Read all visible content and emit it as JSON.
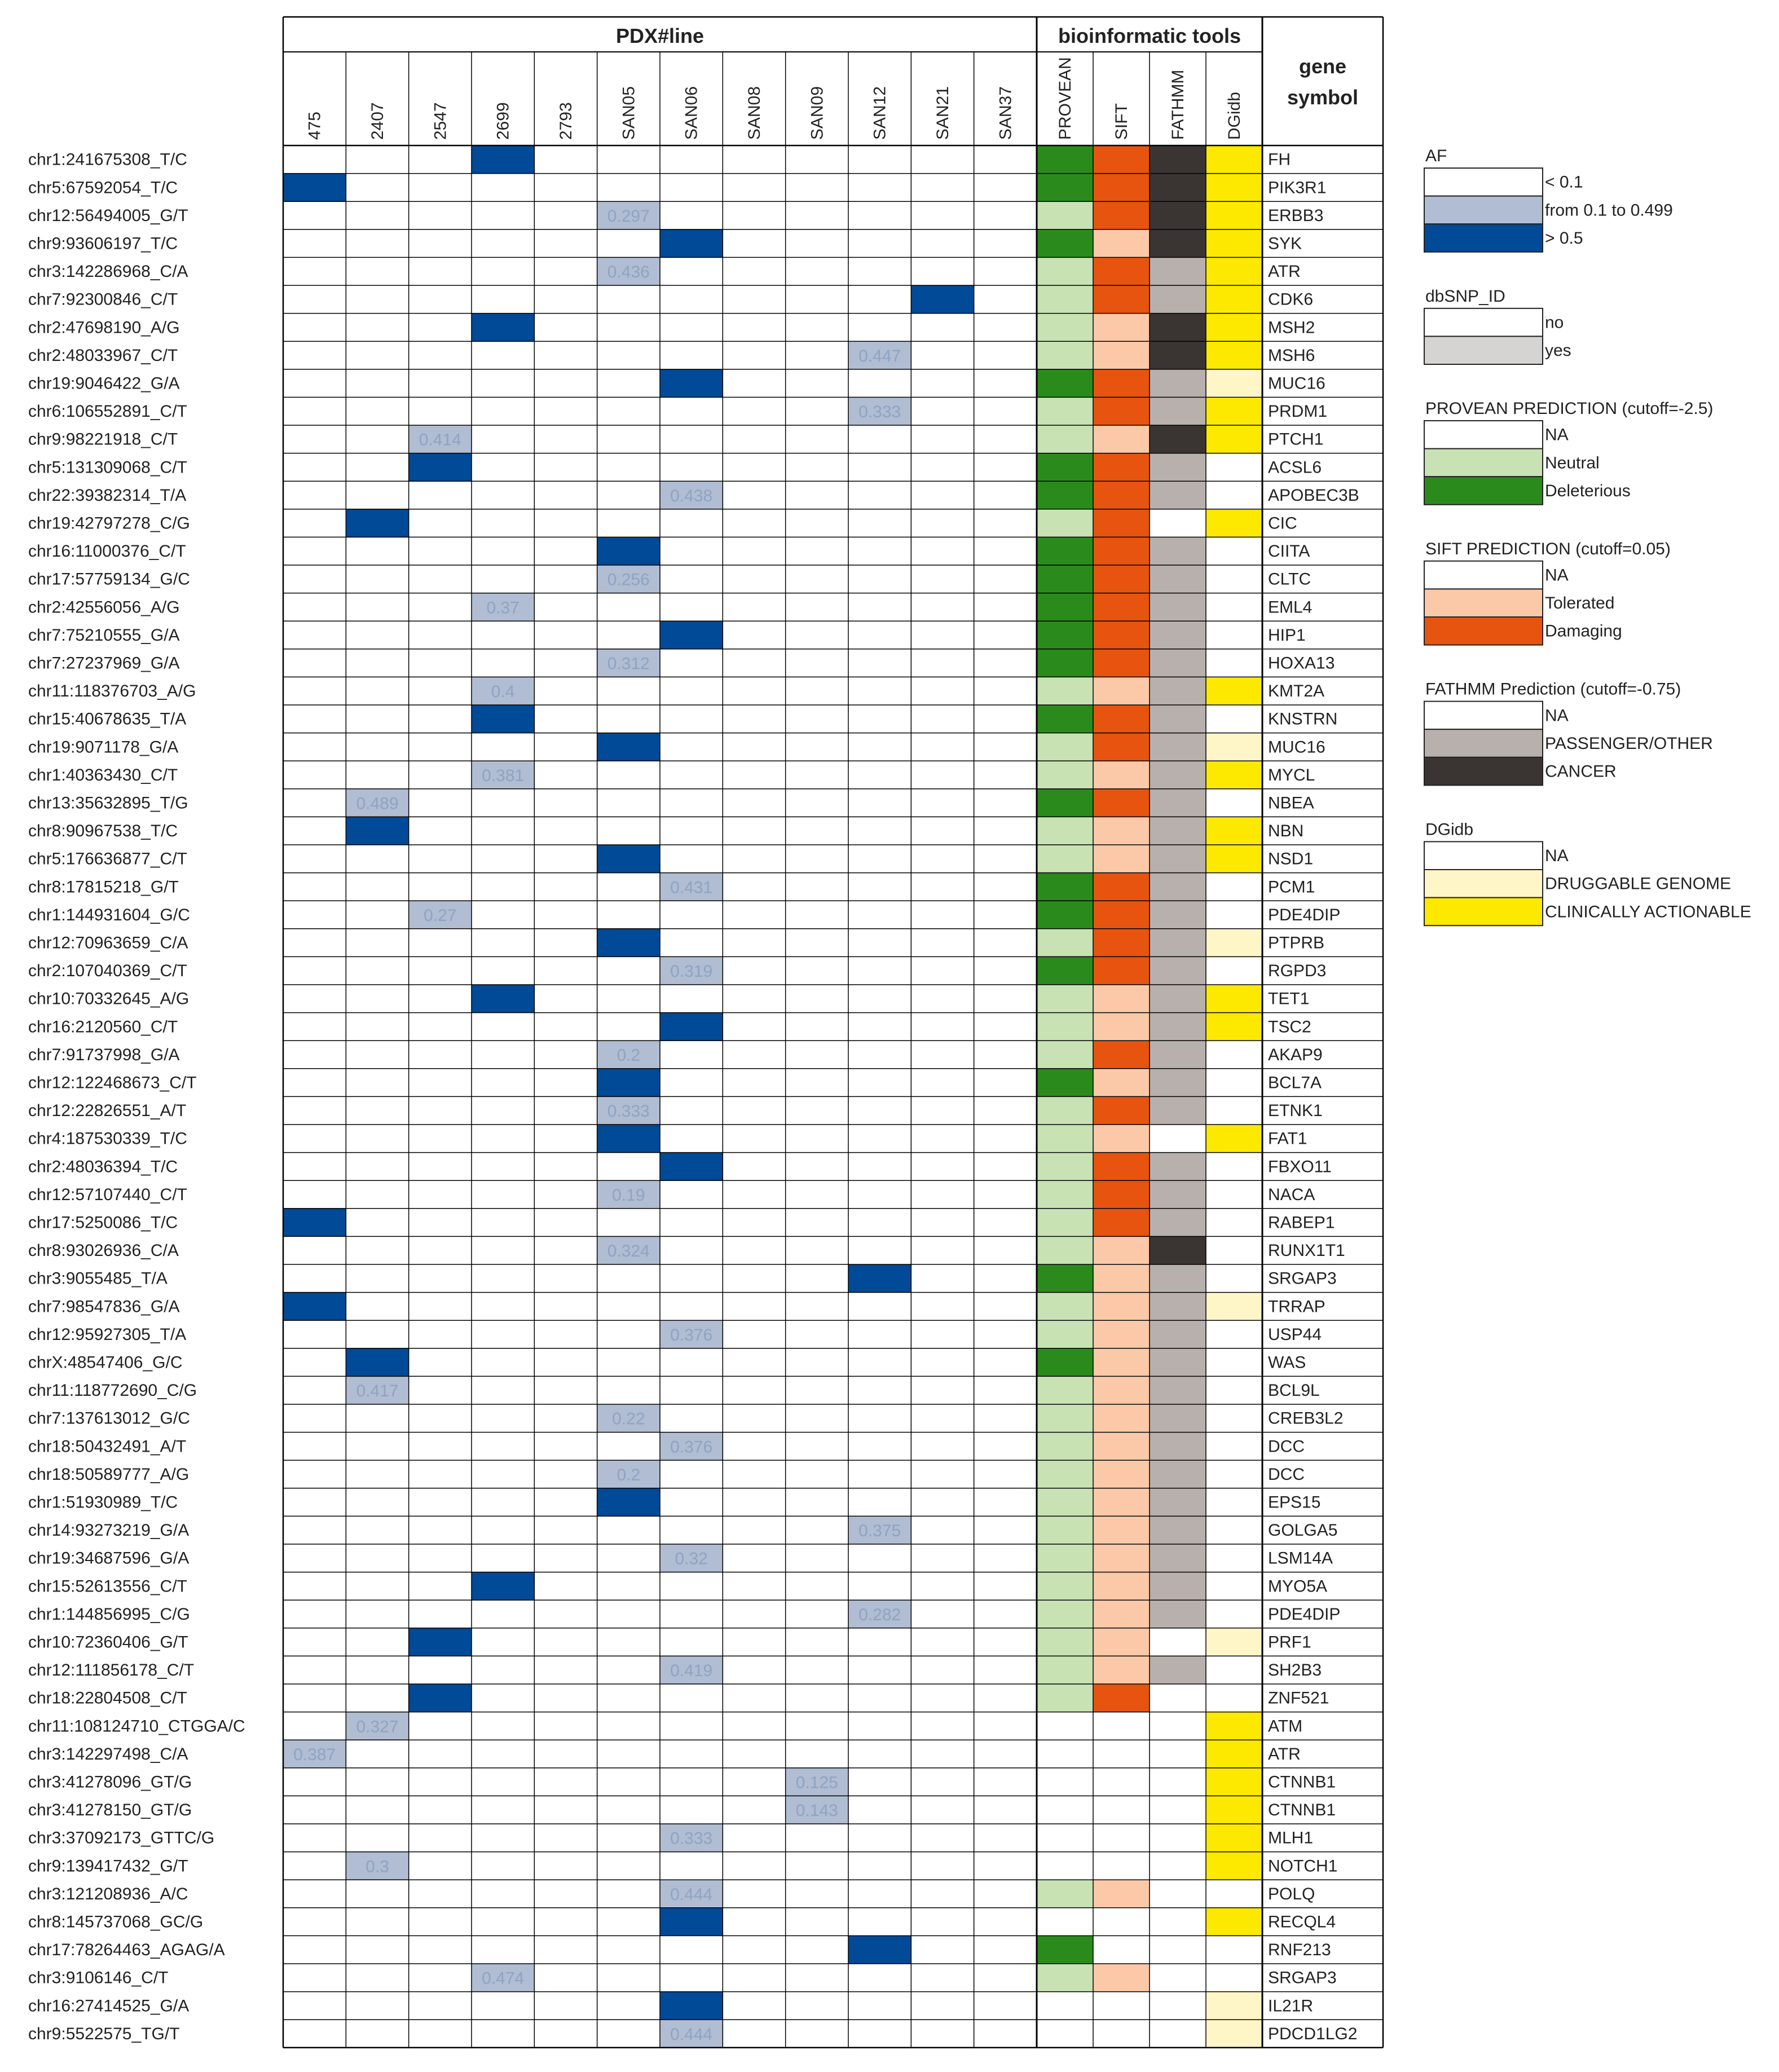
{
  "headers": {
    "pdx_group": "PDX#line",
    "tools_group": "bioinformatic tools",
    "gene_header": "gene symbol"
  },
  "pdx_lines": [
    "475",
    "2407",
    "2547",
    "2699",
    "2793",
    "SAN05",
    "SAN06",
    "SAN08",
    "SAN09",
    "SAN12",
    "SAN21",
    "SAN37"
  ],
  "tools": [
    "PROVEAN",
    "SIFT",
    "FATHMM",
    "DGidb"
  ],
  "colors": {
    "af_high": "#004a97",
    "af_mid": "#b0bdd2",
    "af_value_text": "#8fa3c2",
    "provean_neutral": "#c8e2b4",
    "provean_deleterious": "#2b8a1c",
    "sift_tolerated": "#fcc9a8",
    "sift_damaging": "#e65410",
    "fathmm_passenger": "#b8b0ac",
    "fathmm_cancer": "#3a3533",
    "dgidb_druggable": "#fff6c8",
    "dgidb_actionable": "#fde800",
    "dbsnp_yes": "#d6d4d2"
  },
  "rows": [
    {
      "variant": "chr1:241675308_T/C",
      "gene": "FH",
      "af": {
        "col": 3,
        "level": "high",
        "value": ""
      },
      "provean": "D",
      "sift": "D",
      "fathmm": "C",
      "dgidb": "A"
    },
    {
      "variant": "chr5:67592054_T/C",
      "gene": "PIK3R1",
      "af": {
        "col": 0,
        "level": "high",
        "value": ""
      },
      "provean": "D",
      "sift": "D",
      "fathmm": "C",
      "dgidb": "A"
    },
    {
      "variant": "chr12:56494005_G/T",
      "gene": "ERBB3",
      "af": {
        "col": 5,
        "level": "mid",
        "value": "0.297"
      },
      "provean": "N",
      "sift": "D",
      "fathmm": "C",
      "dgidb": "A"
    },
    {
      "variant": "chr9:93606197_T/C",
      "gene": "SYK",
      "af": {
        "col": 6,
        "level": "high",
        "value": ""
      },
      "provean": "D",
      "sift": "T",
      "fathmm": "C",
      "dgidb": "A"
    },
    {
      "variant": "chr3:142286968_C/A",
      "gene": "ATR",
      "af": {
        "col": 5,
        "level": "mid",
        "value": "0.436"
      },
      "provean": "N",
      "sift": "D",
      "fathmm": "P",
      "dgidb": "A"
    },
    {
      "variant": "chr7:92300846_C/T",
      "gene": "CDK6",
      "af": {
        "col": 10,
        "level": "high",
        "value": ""
      },
      "provean": "N",
      "sift": "D",
      "fathmm": "P",
      "dgidb": "A"
    },
    {
      "variant": "chr2:47698190_A/G",
      "gene": "MSH2",
      "af": {
        "col": 3,
        "level": "high",
        "value": ""
      },
      "provean": "N",
      "sift": "T",
      "fathmm": "C",
      "dgidb": "A"
    },
    {
      "variant": "chr2:48033967_C/T",
      "gene": "MSH6",
      "af": {
        "col": 9,
        "level": "mid",
        "value": "0.447"
      },
      "provean": "N",
      "sift": "T",
      "fathmm": "C",
      "dgidb": "A"
    },
    {
      "variant": "chr19:9046422_G/A",
      "gene": "MUC16",
      "af": {
        "col": 6,
        "level": "high",
        "value": ""
      },
      "provean": "D",
      "sift": "D",
      "fathmm": "P",
      "dgidb": "G"
    },
    {
      "variant": "chr6:106552891_C/T",
      "gene": "PRDM1",
      "af": {
        "col": 9,
        "level": "mid",
        "value": "0.333"
      },
      "provean": "N",
      "sift": "D",
      "fathmm": "P",
      "dgidb": "A"
    },
    {
      "variant": "chr9:98221918_C/T",
      "gene": "PTCH1",
      "af": {
        "col": 2,
        "level": "mid",
        "value": "0.414"
      },
      "provean": "N",
      "sift": "T",
      "fathmm": "C",
      "dgidb": "A"
    },
    {
      "variant": "chr5:131309068_C/T",
      "gene": "ACSL6",
      "af": {
        "col": 2,
        "level": "high",
        "value": ""
      },
      "provean": "D",
      "sift": "D",
      "fathmm": "P",
      "dgidb": "NA"
    },
    {
      "variant": "chr22:39382314_T/A",
      "gene": "APOBEC3B",
      "af": {
        "col": 6,
        "level": "mid",
        "value": "0.438"
      },
      "provean": "D",
      "sift": "D",
      "fathmm": "P",
      "dgidb": "NA"
    },
    {
      "variant": "chr19:42797278_C/G",
      "gene": "CIC",
      "af": {
        "col": 1,
        "level": "high",
        "value": ""
      },
      "provean": "N",
      "sift": "D",
      "fathmm": "NA",
      "dgidb": "A"
    },
    {
      "variant": "chr16:11000376_C/T",
      "gene": "CIITA",
      "af": {
        "col": 5,
        "level": "high",
        "value": ""
      },
      "provean": "D",
      "sift": "D",
      "fathmm": "P",
      "dgidb": "NA"
    },
    {
      "variant": "chr17:57759134_G/C",
      "gene": "CLTC",
      "af": {
        "col": 5,
        "level": "mid",
        "value": "0.256"
      },
      "provean": "D",
      "sift": "D",
      "fathmm": "P",
      "dgidb": "NA"
    },
    {
      "variant": "chr2:42556056_A/G",
      "gene": "EML4",
      "af": {
        "col": 3,
        "level": "mid",
        "value": "0.37"
      },
      "provean": "D",
      "sift": "D",
      "fathmm": "P",
      "dgidb": "NA"
    },
    {
      "variant": "chr7:75210555_G/A",
      "gene": "HIP1",
      "af": {
        "col": 6,
        "level": "high",
        "value": ""
      },
      "provean": "D",
      "sift": "D",
      "fathmm": "P",
      "dgidb": "NA"
    },
    {
      "variant": "chr7:27237969_G/A",
      "gene": "HOXA13",
      "af": {
        "col": 5,
        "level": "mid",
        "value": "0.312"
      },
      "provean": "D",
      "sift": "D",
      "fathmm": "P",
      "dgidb": "NA"
    },
    {
      "variant": "chr11:118376703_A/G",
      "gene": "KMT2A",
      "af": {
        "col": 3,
        "level": "mid",
        "value": "0.4"
      },
      "provean": "N",
      "sift": "T",
      "fathmm": "P",
      "dgidb": "A"
    },
    {
      "variant": "chr15:40678635_T/A",
      "gene": "KNSTRN",
      "af": {
        "col": 3,
        "level": "high",
        "value": ""
      },
      "provean": "D",
      "sift": "D",
      "fathmm": "P",
      "dgidb": "NA"
    },
    {
      "variant": "chr19:9071178_G/A",
      "gene": "MUC16",
      "af": {
        "col": 5,
        "level": "high",
        "value": ""
      },
      "provean": "N",
      "sift": "D",
      "fathmm": "P",
      "dgidb": "G"
    },
    {
      "variant": "chr1:40363430_C/T",
      "gene": "MYCL",
      "af": {
        "col": 3,
        "level": "mid",
        "value": "0.381"
      },
      "provean": "N",
      "sift": "T",
      "fathmm": "P",
      "dgidb": "A"
    },
    {
      "variant": "chr13:35632895_T/G",
      "gene": "NBEA",
      "af": {
        "col": 1,
        "level": "mid",
        "value": "0.489"
      },
      "provean": "D",
      "sift": "D",
      "fathmm": "P",
      "dgidb": "NA"
    },
    {
      "variant": "chr8:90967538_T/C",
      "gene": "NBN",
      "af": {
        "col": 1,
        "level": "high",
        "value": ""
      },
      "provean": "N",
      "sift": "T",
      "fathmm": "P",
      "dgidb": "A"
    },
    {
      "variant": "chr5:176636877_C/T",
      "gene": "NSD1",
      "af": {
        "col": 5,
        "level": "high",
        "value": ""
      },
      "provean": "N",
      "sift": "T",
      "fathmm": "P",
      "dgidb": "A"
    },
    {
      "variant": "chr8:17815218_G/T",
      "gene": "PCM1",
      "af": {
        "col": 6,
        "level": "mid",
        "value": "0.431"
      },
      "provean": "D",
      "sift": "D",
      "fathmm": "P",
      "dgidb": "NA"
    },
    {
      "variant": "chr1:144931604_G/C",
      "gene": "PDE4DIP",
      "af": {
        "col": 2,
        "level": "mid",
        "value": "0.27"
      },
      "provean": "D",
      "sift": "D",
      "fathmm": "P",
      "dgidb": "NA"
    },
    {
      "variant": "chr12:70963659_C/A",
      "gene": "PTPRB",
      "af": {
        "col": 5,
        "level": "high",
        "value": ""
      },
      "provean": "N",
      "sift": "D",
      "fathmm": "P",
      "dgidb": "G"
    },
    {
      "variant": "chr2:107040369_C/T",
      "gene": "RGPD3",
      "af": {
        "col": 6,
        "level": "mid",
        "value": "0.319"
      },
      "provean": "D",
      "sift": "D",
      "fathmm": "P",
      "dgidb": "NA"
    },
    {
      "variant": "chr10:70332645_A/G",
      "gene": "TET1",
      "af": {
        "col": 3,
        "level": "high",
        "value": ""
      },
      "provean": "N",
      "sift": "T",
      "fathmm": "P",
      "dgidb": "A"
    },
    {
      "variant": "chr16:2120560_C/T",
      "gene": "TSC2",
      "af": {
        "col": 6,
        "level": "high",
        "value": ""
      },
      "provean": "N",
      "sift": "T",
      "fathmm": "P",
      "dgidb": "A"
    },
    {
      "variant": "chr7:91737998_G/A",
      "gene": "AKAP9",
      "af": {
        "col": 5,
        "level": "mid",
        "value": "0.2"
      },
      "provean": "N",
      "sift": "D",
      "fathmm": "P",
      "dgidb": "NA"
    },
    {
      "variant": "chr12:122468673_C/T",
      "gene": "BCL7A",
      "af": {
        "col": 5,
        "level": "high",
        "value": ""
      },
      "provean": "D",
      "sift": "T",
      "fathmm": "P",
      "dgidb": "NA"
    },
    {
      "variant": "chr12:22826551_A/T",
      "gene": "ETNK1",
      "af": {
        "col": 5,
        "level": "mid",
        "value": "0.333"
      },
      "provean": "N",
      "sift": "D",
      "fathmm": "P",
      "dgidb": "NA"
    },
    {
      "variant": "chr4:187530339_T/C",
      "gene": "FAT1",
      "af": {
        "col": 5,
        "level": "high",
        "value": ""
      },
      "provean": "N",
      "sift": "T",
      "fathmm": "NA",
      "dgidb": "A"
    },
    {
      "variant": "chr2:48036394_T/C",
      "gene": "FBXO11",
      "af": {
        "col": 6,
        "level": "high",
        "value": ""
      },
      "provean": "N",
      "sift": "D",
      "fathmm": "P",
      "dgidb": "NA"
    },
    {
      "variant": "chr12:57107440_C/T",
      "gene": "NACA",
      "af": {
        "col": 5,
        "level": "mid",
        "value": "0.19"
      },
      "provean": "N",
      "sift": "D",
      "fathmm": "P",
      "dgidb": "NA"
    },
    {
      "variant": "chr17:5250086_T/C",
      "gene": "RABEP1",
      "af": {
        "col": 0,
        "level": "high",
        "value": ""
      },
      "provean": "N",
      "sift": "D",
      "fathmm": "P",
      "dgidb": "NA"
    },
    {
      "variant": "chr8:93026936_C/A",
      "gene": "RUNX1T1",
      "af": {
        "col": 5,
        "level": "mid",
        "value": "0.324"
      },
      "provean": "N",
      "sift": "T",
      "fathmm": "C",
      "dgidb": "NA"
    },
    {
      "variant": "chr3:9055485_T/A",
      "gene": "SRGAP3",
      "af": {
        "col": 9,
        "level": "high",
        "value": ""
      },
      "provean": "D",
      "sift": "T",
      "fathmm": "P",
      "dgidb": "NA"
    },
    {
      "variant": "chr7:98547836_G/A",
      "gene": "TRRAP",
      "af": {
        "col": 0,
        "level": "high",
        "value": ""
      },
      "provean": "N",
      "sift": "T",
      "fathmm": "P",
      "dgidb": "G"
    },
    {
      "variant": "chr12:95927305_T/A",
      "gene": "USP44",
      "af": {
        "col": 6,
        "level": "mid",
        "value": "0.376"
      },
      "provean": "N",
      "sift": "T",
      "fathmm": "P",
      "dgidb": "NA"
    },
    {
      "variant": "chrX:48547406_G/C",
      "gene": "WAS",
      "af": {
        "col": 1,
        "level": "high",
        "value": ""
      },
      "provean": "D",
      "sift": "T",
      "fathmm": "P",
      "dgidb": "NA"
    },
    {
      "variant": "chr11:118772690_C/G",
      "gene": "BCL9L",
      "af": {
        "col": 1,
        "level": "mid",
        "value": "0.417"
      },
      "provean": "N",
      "sift": "T",
      "fathmm": "P",
      "dgidb": "NA"
    },
    {
      "variant": "chr7:137613012_G/C",
      "gene": "CREB3L2",
      "af": {
        "col": 5,
        "level": "mid",
        "value": "0.22"
      },
      "provean": "N",
      "sift": "T",
      "fathmm": "P",
      "dgidb": "NA"
    },
    {
      "variant": "chr18:50432491_A/T",
      "gene": "DCC",
      "af": {
        "col": 6,
        "level": "mid",
        "value": "0.376"
      },
      "provean": "N",
      "sift": "T",
      "fathmm": "P",
      "dgidb": "NA"
    },
    {
      "variant": "chr18:50589777_A/G",
      "gene": "DCC",
      "af": {
        "col": 5,
        "level": "mid",
        "value": "0.2"
      },
      "provean": "N",
      "sift": "T",
      "fathmm": "P",
      "dgidb": "NA"
    },
    {
      "variant": "chr1:51930989_T/C",
      "gene": "EPS15",
      "af": {
        "col": 5,
        "level": "high",
        "value": ""
      },
      "provean": "N",
      "sift": "T",
      "fathmm": "P",
      "dgidb": "NA"
    },
    {
      "variant": "chr14:93273219_G/A",
      "gene": "GOLGA5",
      "af": {
        "col": 9,
        "level": "mid",
        "value": "0.375"
      },
      "provean": "N",
      "sift": "T",
      "fathmm": "P",
      "dgidb": "NA"
    },
    {
      "variant": "chr19:34687596_G/A",
      "gene": "LSM14A",
      "af": {
        "col": 6,
        "level": "mid",
        "value": "0.32"
      },
      "provean": "N",
      "sift": "T",
      "fathmm": "P",
      "dgidb": "NA"
    },
    {
      "variant": "chr15:52613556_C/T",
      "gene": "MYO5A",
      "af": {
        "col": 3,
        "level": "high",
        "value": ""
      },
      "provean": "N",
      "sift": "T",
      "fathmm": "P",
      "dgidb": "NA"
    },
    {
      "variant": "chr1:144856995_C/G",
      "gene": "PDE4DIP",
      "af": {
        "col": 9,
        "level": "mid",
        "value": "0.282"
      },
      "provean": "N",
      "sift": "T",
      "fathmm": "P",
      "dgidb": "NA"
    },
    {
      "variant": "chr10:72360406_G/T",
      "gene": "PRF1",
      "af": {
        "col": 2,
        "level": "high",
        "value": ""
      },
      "provean": "N",
      "sift": "T",
      "fathmm": "NA",
      "dgidb": "G"
    },
    {
      "variant": "chr12:111856178_C/T",
      "gene": "SH2B3",
      "af": {
        "col": 6,
        "level": "mid",
        "value": "0.419"
      },
      "provean": "N",
      "sift": "T",
      "fathmm": "P",
      "dgidb": "NA"
    },
    {
      "variant": "chr18:22804508_C/T",
      "gene": "ZNF521",
      "af": {
        "col": 2,
        "level": "high",
        "value": ""
      },
      "provean": "N",
      "sift": "D",
      "fathmm": "NA",
      "dgidb": "NA"
    },
    {
      "variant": "chr11:108124710_CTGGA/C",
      "gene": "ATM",
      "af": {
        "col": 1,
        "level": "mid",
        "value": "0.327"
      },
      "provean": "NA",
      "sift": "NA",
      "fathmm": "NA",
      "dgidb": "A"
    },
    {
      "variant": "chr3:142297498_C/A",
      "gene": "ATR",
      "af": {
        "col": 0,
        "level": "mid",
        "value": "0.387"
      },
      "provean": "NA",
      "sift": "NA",
      "fathmm": "NA",
      "dgidb": "A"
    },
    {
      "variant": "chr3:41278096_GT/G",
      "gene": "CTNNB1",
      "af": {
        "col": 8,
        "level": "mid",
        "value": "0.125"
      },
      "provean": "NA",
      "sift": "NA",
      "fathmm": "NA",
      "dgidb": "A"
    },
    {
      "variant": "chr3:41278150_GT/G",
      "gene": "CTNNB1",
      "af": {
        "col": 8,
        "level": "mid",
        "value": "0.143"
      },
      "provean": "NA",
      "sift": "NA",
      "fathmm": "NA",
      "dgidb": "A"
    },
    {
      "variant": "chr3:37092173_GTTC/G",
      "gene": "MLH1",
      "af": {
        "col": 6,
        "level": "mid",
        "value": "0.333"
      },
      "provean": "NA",
      "sift": "NA",
      "fathmm": "NA",
      "dgidb": "A"
    },
    {
      "variant": "chr9:139417432_G/T",
      "gene": "NOTCH1",
      "af": {
        "col": 1,
        "level": "mid",
        "value": "0.3"
      },
      "provean": "NA",
      "sift": "NA",
      "fathmm": "NA",
      "dgidb": "A"
    },
    {
      "variant": "chr3:121208936_A/C",
      "gene": "POLQ",
      "af": {
        "col": 6,
        "level": "mid",
        "value": "0.444"
      },
      "provean": "N",
      "sift": "T",
      "fathmm": "NA",
      "dgidb": "NA"
    },
    {
      "variant": "chr8:145737068_GC/G",
      "gene": "RECQL4",
      "af": {
        "col": 6,
        "level": "high",
        "value": ""
      },
      "provean": "NA",
      "sift": "NA",
      "fathmm": "NA",
      "dgidb": "A"
    },
    {
      "variant": "chr17:78264463_AGAG/A",
      "gene": "RNF213",
      "af": {
        "col": 9,
        "level": "high",
        "value": ""
      },
      "provean": "D",
      "sift": "NA",
      "fathmm": "NA",
      "dgidb": "NA"
    },
    {
      "variant": "chr3:9106146_C/T",
      "gene": "SRGAP3",
      "af": {
        "col": 3,
        "level": "mid",
        "value": "0.474"
      },
      "provean": "N",
      "sift": "T",
      "fathmm": "NA",
      "dgidb": "NA"
    },
    {
      "variant": "chr16:27414525_G/A",
      "gene": "IL21R",
      "af": {
        "col": 6,
        "level": "high",
        "value": ""
      },
      "provean": "NA",
      "sift": "NA",
      "fathmm": "NA",
      "dgidb": "G"
    },
    {
      "variant": "chr9:5522575_TG/T",
      "gene": "PDCD1LG2",
      "af": {
        "col": 6,
        "level": "mid",
        "value": "0.444"
      },
      "provean": "NA",
      "sift": "NA",
      "fathmm": "NA",
      "dgidb": "G"
    }
  ],
  "legend": [
    {
      "title": "AF",
      "items": [
        {
          "label": "< 0.1",
          "color": "#ffffff"
        },
        {
          "label": "from 0.1 to 0.499",
          "color": "#b0bdd2"
        },
        {
          "label": "> 0.5",
          "color": "#004a97"
        }
      ]
    },
    {
      "title": "dbSNP_ID",
      "items": [
        {
          "label": "no",
          "color": "#ffffff"
        },
        {
          "label": "yes",
          "color": "#d6d4d2"
        }
      ]
    },
    {
      "title": "PROVEAN PREDICTION (cutoff=-2.5)",
      "items": [
        {
          "label": "NA",
          "color": "#ffffff"
        },
        {
          "label": "Neutral",
          "color": "#c8e2b4"
        },
        {
          "label": "Deleterious",
          "color": "#2b8a1c"
        }
      ]
    },
    {
      "title": "SIFT PREDICTION (cutoff=0.05)",
      "items": [
        {
          "label": "NA",
          "color": "#ffffff"
        },
        {
          "label": "Tolerated",
          "color": "#fcc9a8"
        },
        {
          "label": "Damaging",
          "color": "#e65410"
        }
      ]
    },
    {
      "title": "FATHMM Prediction (cutoff=-0.75)",
      "items": [
        {
          "label": "NA",
          "color": "#ffffff"
        },
        {
          "label": "PASSENGER/OTHER",
          "color": "#b8b0ac"
        },
        {
          "label": "CANCER",
          "color": "#3a3533"
        }
      ]
    },
    {
      "title": "DGidb",
      "items": [
        {
          "label": "NA",
          "color": "#ffffff"
        },
        {
          "label": "DRUGGABLE GENOME",
          "color": "#fff6c8"
        },
        {
          "label": "CLINICALLY ACTIONABLE",
          "color": "#fde800"
        }
      ]
    }
  ]
}
